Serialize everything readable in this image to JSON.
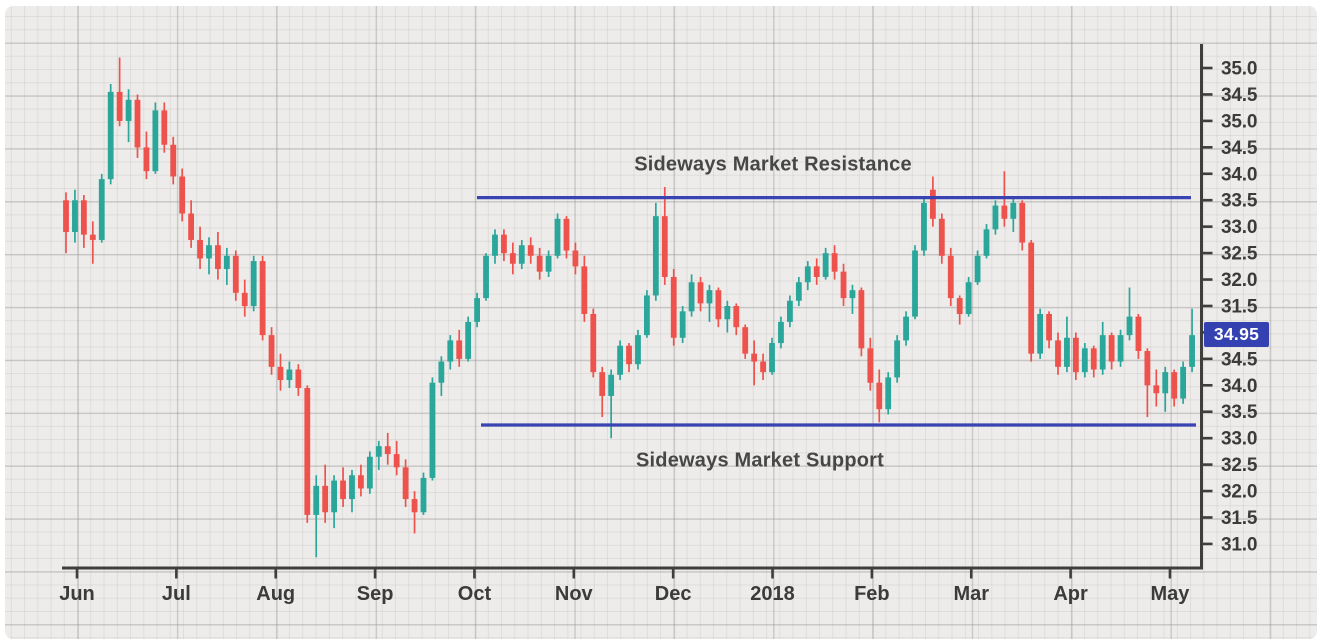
{
  "chart_data": {
    "type": "candlestick",
    "title": "",
    "x_axis": {
      "labels": [
        "Jun",
        "Jul",
        "Aug",
        "Sep",
        "Oct",
        "Nov",
        "Dec",
        "2018",
        "Feb",
        "Mar",
        "Apr",
        "May"
      ],
      "position": "bottom"
    },
    "y_axis": {
      "position": "right",
      "tick_labels_top_to_bottom": [
        "35.0",
        "34.5",
        "35.0",
        "34.5",
        "34.0",
        "33.5",
        "33.0",
        "32.5",
        "32.0",
        "31.5",
        "34.95",
        "34.5",
        "34.0",
        "33.5",
        "33.0",
        "32.5",
        "32.0",
        "31.5",
        "31.0"
      ],
      "badge_index": 10,
      "last_price": "34.95"
    },
    "annotations": {
      "resistance": {
        "label": "Sideways Market Resistance",
        "level": 37.55
      },
      "support": {
        "label": "Sideways Market Support",
        "level": 33.25
      }
    },
    "colors": {
      "up": "#2aa69a",
      "down": "#ee524c",
      "trend_line": "#3a43b2",
      "badge_bg": "#3342b0",
      "badge_text": "#ffffff",
      "axis": "#3e3e3e",
      "tick_text": "#3b3b3b",
      "background": "#edecea"
    },
    "grid": true,
    "legend": false,
    "value_range": [
      30.5,
      40.5
    ],
    "candles_ohlc": [
      [
        37.5,
        37.65,
        36.5,
        36.9
      ],
      [
        36.9,
        37.7,
        36.7,
        37.5
      ],
      [
        37.5,
        37.6,
        36.6,
        36.85
      ],
      [
        36.85,
        37.1,
        36.3,
        36.75
      ],
      [
        36.75,
        38.0,
        36.7,
        37.9
      ],
      [
        37.9,
        39.7,
        37.8,
        39.55
      ],
      [
        39.55,
        40.2,
        38.9,
        39.0
      ],
      [
        39.0,
        39.6,
        38.6,
        39.4
      ],
      [
        39.4,
        39.5,
        38.3,
        38.5
      ],
      [
        38.5,
        38.8,
        37.9,
        38.05
      ],
      [
        38.05,
        39.35,
        38.0,
        39.2
      ],
      [
        39.2,
        39.35,
        38.4,
        38.55
      ],
      [
        38.55,
        38.7,
        37.8,
        37.95
      ],
      [
        37.95,
        38.1,
        37.1,
        37.25
      ],
      [
        37.25,
        37.5,
        36.6,
        36.75
      ],
      [
        36.75,
        37.0,
        36.2,
        36.4
      ],
      [
        36.4,
        36.8,
        36.1,
        36.65
      ],
      [
        36.65,
        36.9,
        36.0,
        36.2
      ],
      [
        36.2,
        36.6,
        35.9,
        36.45
      ],
      [
        36.45,
        36.55,
        35.6,
        35.75
      ],
      [
        35.75,
        36.0,
        35.3,
        35.5
      ],
      [
        35.5,
        36.45,
        35.4,
        36.35
      ],
      [
        36.35,
        36.45,
        34.85,
        34.95
      ],
      [
        34.95,
        35.1,
        34.2,
        34.35
      ],
      [
        34.35,
        34.6,
        33.9,
        34.1
      ],
      [
        34.1,
        34.45,
        33.95,
        34.3
      ],
      [
        34.3,
        34.4,
        33.8,
        33.95
      ],
      [
        33.95,
        34.0,
        31.4,
        31.55
      ],
      [
        31.55,
        32.3,
        30.75,
        32.1
      ],
      [
        32.1,
        32.5,
        31.4,
        31.6
      ],
      [
        31.6,
        32.3,
        31.3,
        32.2
      ],
      [
        32.2,
        32.45,
        31.7,
        31.85
      ],
      [
        31.85,
        32.4,
        31.6,
        32.3
      ],
      [
        32.3,
        32.5,
        31.9,
        32.05
      ],
      [
        32.05,
        32.75,
        31.95,
        32.65
      ],
      [
        32.65,
        32.95,
        32.4,
        32.85
      ],
      [
        32.85,
        33.1,
        32.5,
        32.7
      ],
      [
        32.7,
        32.95,
        32.3,
        32.45
      ],
      [
        32.45,
        32.6,
        31.7,
        31.85
      ],
      [
        31.85,
        32.0,
        31.2,
        31.6
      ],
      [
        31.6,
        32.35,
        31.55,
        32.25
      ],
      [
        32.25,
        34.15,
        32.2,
        34.05
      ],
      [
        34.05,
        34.55,
        33.8,
        34.45
      ],
      [
        34.45,
        34.95,
        34.3,
        34.85
      ],
      [
        34.85,
        35.05,
        34.35,
        34.5
      ],
      [
        34.5,
        35.3,
        34.45,
        35.2
      ],
      [
        35.2,
        35.75,
        35.1,
        35.65
      ],
      [
        35.65,
        36.5,
        35.6,
        36.45
      ],
      [
        36.45,
        36.95,
        36.3,
        36.85
      ],
      [
        36.85,
        36.95,
        36.35,
        36.5
      ],
      [
        36.5,
        36.7,
        36.1,
        36.3
      ],
      [
        36.3,
        36.75,
        36.2,
        36.65
      ],
      [
        36.65,
        36.8,
        36.3,
        36.45
      ],
      [
        36.45,
        36.6,
        36.0,
        36.15
      ],
      [
        36.15,
        36.55,
        36.05,
        36.45
      ],
      [
        36.45,
        37.25,
        36.4,
        37.15
      ],
      [
        37.15,
        37.2,
        36.4,
        36.55
      ],
      [
        36.55,
        36.7,
        36.1,
        36.25
      ],
      [
        36.25,
        36.45,
        35.2,
        35.35
      ],
      [
        35.35,
        35.45,
        34.15,
        34.25
      ],
      [
        34.25,
        34.35,
        33.4,
        33.8
      ],
      [
        33.8,
        34.3,
        33.0,
        34.2
      ],
      [
        34.2,
        34.85,
        34.1,
        34.75
      ],
      [
        34.75,
        34.8,
        34.25,
        34.4
      ],
      [
        34.4,
        35.05,
        34.3,
        34.95
      ],
      [
        34.95,
        35.8,
        34.9,
        35.7
      ],
      [
        35.7,
        37.45,
        35.6,
        37.2
      ],
      [
        37.2,
        37.75,
        35.9,
        36.05
      ],
      [
        36.05,
        36.2,
        34.75,
        34.9
      ],
      [
        34.9,
        35.5,
        34.8,
        35.4
      ],
      [
        35.4,
        36.1,
        35.3,
        35.95
      ],
      [
        35.95,
        36.05,
        35.4,
        35.55
      ],
      [
        35.55,
        35.9,
        35.2,
        35.8
      ],
      [
        35.8,
        35.85,
        35.1,
        35.25
      ],
      [
        35.25,
        35.6,
        35.0,
        35.5
      ],
      [
        35.5,
        35.55,
        34.95,
        35.1
      ],
      [
        35.1,
        35.15,
        34.5,
        34.6
      ],
      [
        34.6,
        34.85,
        34.0,
        34.45
      ],
      [
        34.45,
        34.6,
        34.1,
        34.25
      ],
      [
        34.25,
        34.9,
        34.2,
        34.8
      ],
      [
        34.8,
        35.3,
        34.7,
        35.2
      ],
      [
        35.2,
        35.7,
        35.1,
        35.6
      ],
      [
        35.6,
        36.05,
        35.5,
        35.95
      ],
      [
        35.95,
        36.35,
        35.8,
        36.25
      ],
      [
        36.25,
        36.4,
        35.9,
        36.05
      ],
      [
        36.05,
        36.6,
        36.0,
        36.5
      ],
      [
        36.5,
        36.65,
        36.0,
        36.15
      ],
      [
        36.15,
        36.3,
        35.5,
        35.65
      ],
      [
        35.65,
        35.9,
        35.35,
        35.8
      ],
      [
        35.8,
        35.85,
        34.55,
        34.7
      ],
      [
        34.7,
        34.9,
        33.9,
        34.05
      ],
      [
        34.05,
        34.3,
        33.3,
        33.55
      ],
      [
        33.55,
        34.25,
        33.45,
        34.15
      ],
      [
        34.15,
        34.95,
        34.05,
        34.85
      ],
      [
        34.85,
        35.4,
        34.75,
        35.3
      ],
      [
        35.3,
        36.65,
        35.25,
        36.55
      ],
      [
        36.55,
        37.55,
        36.45,
        37.45
      ],
      [
        37.7,
        37.95,
        37.0,
        37.15
      ],
      [
        37.15,
        37.25,
        36.3,
        36.45
      ],
      [
        36.45,
        36.6,
        35.5,
        35.65
      ],
      [
        35.65,
        35.7,
        35.15,
        35.35
      ],
      [
        35.35,
        36.05,
        35.3,
        35.95
      ],
      [
        35.95,
        36.55,
        35.9,
        36.45
      ],
      [
        36.45,
        37.05,
        36.4,
        36.95
      ],
      [
        36.95,
        37.5,
        36.85,
        37.4
      ],
      [
        37.4,
        38.05,
        37.0,
        37.15
      ],
      [
        37.15,
        37.55,
        36.9,
        37.45
      ],
      [
        37.45,
        37.5,
        36.55,
        36.7
      ],
      [
        36.7,
        36.75,
        34.45,
        34.6
      ],
      [
        34.6,
        35.45,
        34.5,
        35.35
      ],
      [
        35.35,
        35.4,
        34.7,
        34.85
      ],
      [
        34.85,
        35.0,
        34.2,
        34.35
      ],
      [
        34.35,
        35.3,
        34.25,
        34.9
      ],
      [
        34.9,
        35.0,
        34.1,
        34.25
      ],
      [
        34.25,
        34.8,
        34.15,
        34.7
      ],
      [
        34.7,
        34.75,
        34.15,
        34.3
      ],
      [
        34.3,
        35.2,
        34.2,
        34.95
      ],
      [
        34.95,
        35.0,
        34.3,
        34.45
      ],
      [
        34.45,
        35.05,
        34.35,
        34.95
      ],
      [
        34.95,
        35.85,
        34.85,
        35.3
      ],
      [
        35.3,
        35.35,
        34.5,
        34.65
      ],
      [
        34.65,
        34.7,
        33.4,
        34.0
      ],
      [
        34.0,
        34.3,
        33.6,
        33.85
      ],
      [
        33.85,
        34.35,
        33.5,
        34.25
      ],
      [
        34.25,
        34.3,
        33.6,
        33.75
      ],
      [
        33.75,
        34.45,
        33.65,
        34.35
      ],
      [
        34.35,
        35.45,
        34.25,
        34.95
      ]
    ]
  }
}
